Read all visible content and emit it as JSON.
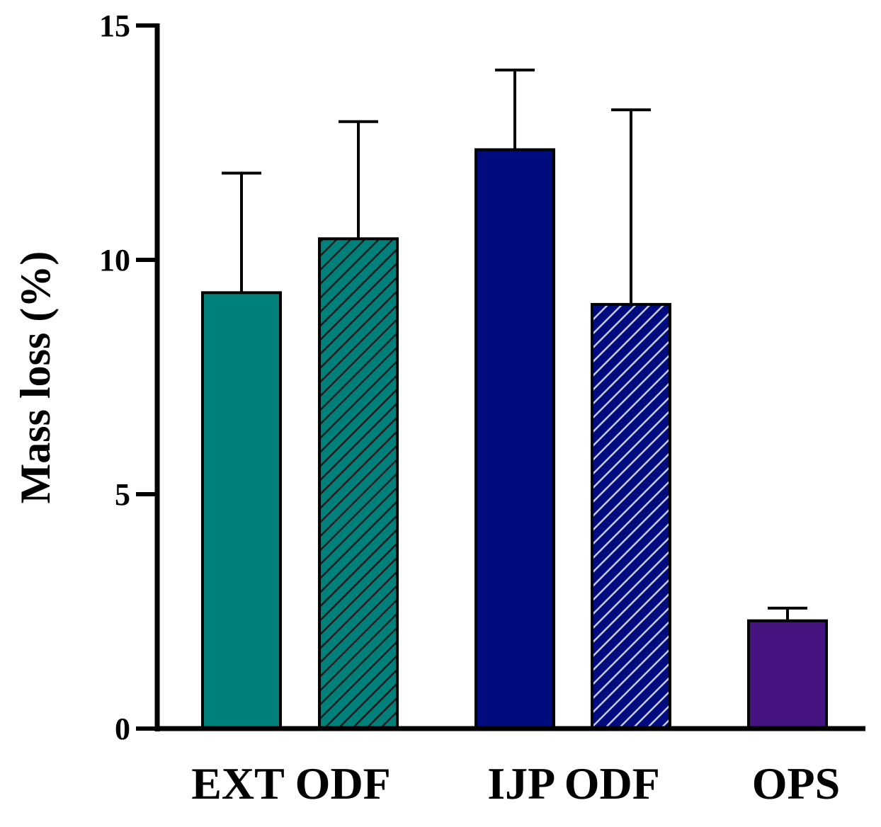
{
  "chart_data": {
    "type": "bar",
    "title": "",
    "xlabel": "",
    "ylabel": "Mass loss (%)",
    "ylim": [
      0,
      15
    ],
    "yticks": [
      0,
      5,
      10,
      15
    ],
    "ytick_labels": [
      "0",
      "5",
      "10",
      "15"
    ],
    "groups": [
      "EXT ODF",
      "IJP ODF",
      "OPS"
    ],
    "bars": [
      {
        "group": "EXT ODF",
        "value": 9.3,
        "error": 2.55,
        "color": "#00807A",
        "hatched": false,
        "hatch_color": ""
      },
      {
        "group": "EXT ODF",
        "value": 10.45,
        "error": 2.5,
        "color": "#00807A",
        "hatched": true,
        "hatch_color": "#1a1a1a"
      },
      {
        "group": "IJP ODF",
        "value": 12.35,
        "error": 1.7,
        "color": "#000C7D",
        "hatched": false,
        "hatch_color": ""
      },
      {
        "group": "IJP ODF",
        "value": 9.05,
        "error": 4.15,
        "color": "#000C7D",
        "hatched": true,
        "hatch_color": "#c8cbe6"
      },
      {
        "group": "OPS",
        "value": 2.3,
        "error": 0.27,
        "color": "#461480",
        "hatched": false,
        "hatch_color": ""
      }
    ],
    "grid": false,
    "legend": "none"
  }
}
